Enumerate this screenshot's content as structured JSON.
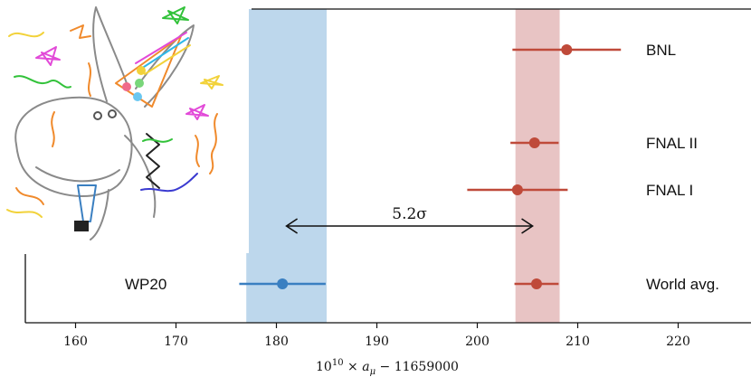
{
  "chart_data": {
    "type": "scatter",
    "title": "",
    "xlabel": "10¹⁰ × aμ − 11659000",
    "ylabel": "",
    "xlim": [
      155,
      227
    ],
    "xticks": [
      160,
      170,
      180,
      190,
      200,
      210,
      220
    ],
    "bands": [
      {
        "name": "WP20 band",
        "x_range": [
          177.0,
          185.0
        ],
        "color": "#bdd7ec"
      },
      {
        "name": "World avg. band",
        "x_range": [
          203.8,
          208.2
        ],
        "color": "#e8c4c4"
      }
    ],
    "points": [
      {
        "label": "BNL",
        "value": 208.9,
        "err_low": 5.4,
        "err_high": 5.4,
        "color": "#bf4a3a"
      },
      {
        "label": "FNAL II",
        "value": 205.7,
        "err_low": 2.4,
        "err_high": 2.4,
        "color": "#bf4a3a"
      },
      {
        "label": "FNAL I",
        "value": 204.0,
        "err_low": 5.0,
        "err_high": 5.0,
        "color": "#bf4a3a"
      },
      {
        "label": "World avg.",
        "value": 205.9,
        "err_low": 2.2,
        "err_high": 2.2,
        "color": "#bf4a3a"
      },
      {
        "label": "WP20",
        "value": 180.6,
        "err_low": 4.3,
        "err_high": 4.3,
        "color": "#3a7fc1"
      }
    ],
    "tension": {
      "label": "5.2σ",
      "from": 181.0,
      "to": 205.5
    }
  }
}
